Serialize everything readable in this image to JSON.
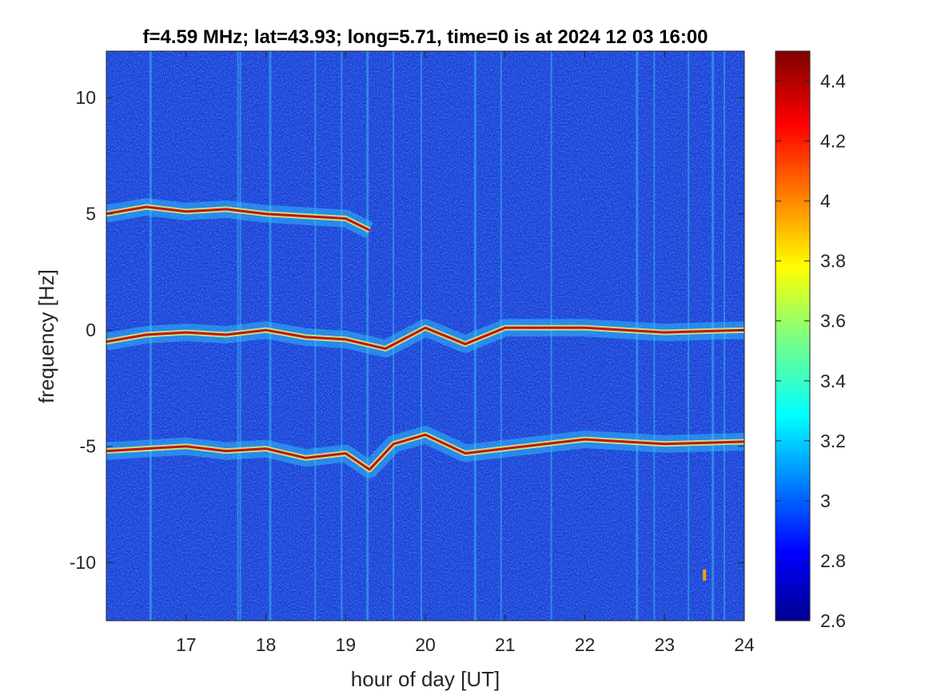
{
  "chart_data": {
    "type": "heatmap",
    "title": "f=4.59 MHz;  lat=43.93; long=5.71, time=0 is at 2024 12 03 16:00",
    "xlabel": "hour of day [UT]",
    "ylabel": "frequency [Hz]",
    "xlim": [
      16,
      24
    ],
    "ylim": [
      -12.5,
      12
    ],
    "xticks": [
      17,
      18,
      19,
      20,
      21,
      22,
      23,
      24
    ],
    "yticks": [
      10,
      5,
      0,
      -5,
      -10
    ],
    "colormap": "jet",
    "colorbar": {
      "range": [
        2.6,
        4.5
      ],
      "ticks": [
        4.4,
        4.2,
        4,
        3.8,
        3.6,
        3.4,
        3.2,
        3,
        2.8,
        2.6
      ]
    },
    "background_level": 2.8,
    "bands": [
      {
        "center_hz": 5,
        "traces": [
          [
            16,
            5.0
          ],
          [
            16.5,
            5.3
          ],
          [
            17,
            5.1
          ],
          [
            17.5,
            5.2
          ],
          [
            18,
            5.0
          ],
          [
            18.5,
            4.9
          ],
          [
            19,
            4.8
          ],
          [
            19.3,
            4.3
          ]
        ]
      },
      {
        "center_hz": 0,
        "traces": [
          [
            16,
            -0.5
          ],
          [
            16.5,
            -0.2
          ],
          [
            17,
            -0.1
          ],
          [
            17.5,
            -0.2
          ],
          [
            18,
            0.0
          ],
          [
            18.5,
            -0.3
          ],
          [
            19,
            -0.4
          ],
          [
            19.5,
            -0.8
          ],
          [
            20,
            0.1
          ],
          [
            20.5,
            -0.6
          ],
          [
            21,
            0.1
          ],
          [
            22,
            0.1
          ],
          [
            23,
            -0.1
          ],
          [
            24,
            0.0
          ]
        ]
      },
      {
        "center_hz": -5,
        "traces": [
          [
            16,
            -5.2
          ],
          [
            16.5,
            -5.1
          ],
          [
            17,
            -5.0
          ],
          [
            17.5,
            -5.2
          ],
          [
            18,
            -5.1
          ],
          [
            18.5,
            -5.5
          ],
          [
            19,
            -5.3
          ],
          [
            19.3,
            -6.0
          ],
          [
            19.6,
            -4.9
          ],
          [
            20,
            -4.5
          ],
          [
            20.5,
            -5.3
          ],
          [
            21,
            -5.1
          ],
          [
            22,
            -4.7
          ],
          [
            23,
            -4.9
          ],
          [
            24,
            -4.8
          ]
        ]
      }
    ]
  }
}
